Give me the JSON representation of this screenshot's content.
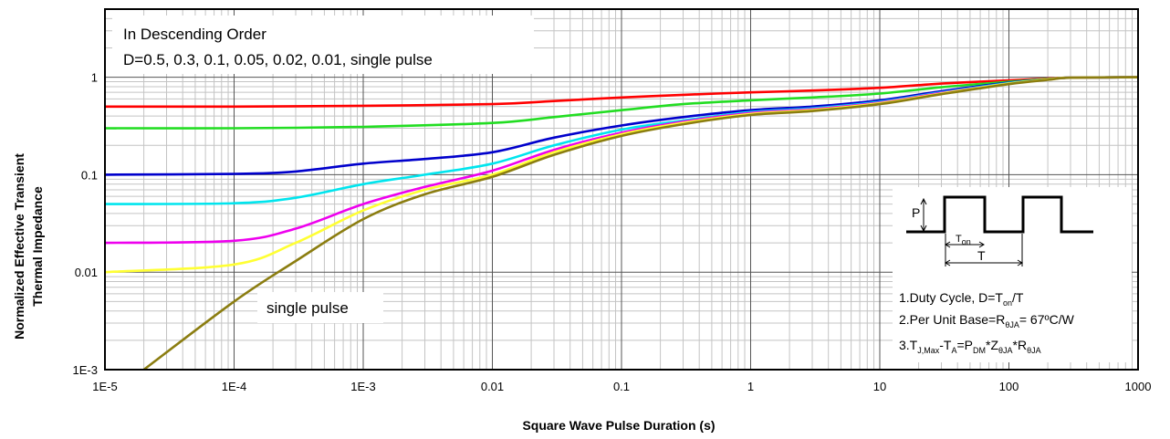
{
  "chart_data": {
    "type": "line",
    "title": "",
    "xlabel": "Square Wave Pulse Duration (s)",
    "ylabel_line1": "Normalized Effective Transient",
    "ylabel_line2": "Thermal Impedance",
    "xscale": "log",
    "yscale": "log",
    "xlim": [
      1e-05,
      1000
    ],
    "ylim": [
      0.001,
      5
    ],
    "grid": true,
    "x_tick_labels": [
      {
        "v": 1e-05,
        "label": "1E-5"
      },
      {
        "v": 0.0001,
        "label": "1E-4"
      },
      {
        "v": 0.001,
        "label": "1E-3"
      },
      {
        "v": 0.01,
        "label": "0.01"
      },
      {
        "v": 0.1,
        "label": "0.1"
      },
      {
        "v": 1,
        "label": "1"
      },
      {
        "v": 10,
        "label": "10"
      },
      {
        "v": 100,
        "label": "100"
      },
      {
        "v": 1000,
        "label": "1000"
      }
    ],
    "y_tick_labels": [
      {
        "v": 0.001,
        "label": "1E-3"
      },
      {
        "v": 0.01,
        "label": "0.01"
      },
      {
        "v": 0.1,
        "label": "0.1"
      },
      {
        "v": 1,
        "label": "1"
      }
    ],
    "annotations": {
      "order_line1": "In Descending Order",
      "order_line2": "D=0.5, 0.3, 0.1, 0.05, 0.02, 0.01, single pulse",
      "single_pulse_label": "single pulse"
    },
    "series": [
      {
        "color": "#ff0000",
        "points": [
          [
            1e-05,
            0.5
          ],
          [
            0.0001,
            0.5
          ],
          [
            0.001,
            0.51
          ],
          [
            0.01,
            0.53
          ],
          [
            0.03,
            0.57
          ],
          [
            0.1,
            0.62
          ],
          [
            0.3,
            0.66
          ],
          [
            1,
            0.7
          ],
          [
            3,
            0.73
          ],
          [
            10,
            0.78
          ],
          [
            30,
            0.86
          ],
          [
            100,
            0.93
          ],
          [
            200,
            0.97
          ],
          [
            300,
            0.99
          ],
          [
            1000,
            1.0
          ]
        ]
      },
      {
        "color": "#22dd22",
        "points": [
          [
            1e-05,
            0.3
          ],
          [
            0.0001,
            0.3
          ],
          [
            0.001,
            0.31
          ],
          [
            0.01,
            0.34
          ],
          [
            0.03,
            0.39
          ],
          [
            0.1,
            0.46
          ],
          [
            0.3,
            0.53
          ],
          [
            1,
            0.58
          ],
          [
            3,
            0.62
          ],
          [
            10,
            0.68
          ],
          [
            30,
            0.79
          ],
          [
            100,
            0.9
          ],
          [
            200,
            0.96
          ],
          [
            300,
            0.99
          ],
          [
            1000,
            1.0
          ]
        ]
      },
      {
        "color": "#0000cc",
        "points": [
          [
            1e-05,
            0.1
          ],
          [
            0.0001,
            0.102
          ],
          [
            0.0003,
            0.108
          ],
          [
            0.001,
            0.13
          ],
          [
            0.003,
            0.145
          ],
          [
            0.01,
            0.17
          ],
          [
            0.03,
            0.24
          ],
          [
            0.1,
            0.32
          ],
          [
            0.3,
            0.39
          ],
          [
            1,
            0.46
          ],
          [
            3,
            0.5
          ],
          [
            10,
            0.58
          ],
          [
            30,
            0.72
          ],
          [
            100,
            0.88
          ],
          [
            200,
            0.95
          ],
          [
            300,
            0.99
          ],
          [
            1000,
            1.0
          ]
        ]
      },
      {
        "color": "#00e5ee",
        "points": [
          [
            1e-05,
            0.05
          ],
          [
            0.0001,
            0.051
          ],
          [
            0.0003,
            0.058
          ],
          [
            0.001,
            0.08
          ],
          [
            0.003,
            0.1
          ],
          [
            0.01,
            0.13
          ],
          [
            0.03,
            0.2
          ],
          [
            0.1,
            0.29
          ],
          [
            0.3,
            0.36
          ],
          [
            1,
            0.44
          ],
          [
            3,
            0.48
          ],
          [
            10,
            0.56
          ],
          [
            30,
            0.7
          ],
          [
            100,
            0.87
          ],
          [
            200,
            0.95
          ],
          [
            300,
            0.99
          ],
          [
            1000,
            1.0
          ]
        ]
      },
      {
        "color": "#ee00ee",
        "points": [
          [
            1e-05,
            0.02
          ],
          [
            0.0001,
            0.021
          ],
          [
            0.0003,
            0.028
          ],
          [
            0.001,
            0.05
          ],
          [
            0.003,
            0.075
          ],
          [
            0.01,
            0.11
          ],
          [
            0.03,
            0.18
          ],
          [
            0.1,
            0.27
          ],
          [
            0.3,
            0.35
          ],
          [
            1,
            0.43
          ],
          [
            3,
            0.47
          ],
          [
            10,
            0.55
          ],
          [
            30,
            0.69
          ],
          [
            100,
            0.86
          ],
          [
            200,
            0.95
          ],
          [
            300,
            0.99
          ],
          [
            1000,
            1.0
          ]
        ]
      },
      {
        "color": "#ffff33",
        "points": [
          [
            1e-05,
            0.01
          ],
          [
            0.0001,
            0.012
          ],
          [
            0.0003,
            0.02
          ],
          [
            0.001,
            0.043
          ],
          [
            0.003,
            0.07
          ],
          [
            0.01,
            0.1
          ],
          [
            0.03,
            0.17
          ],
          [
            0.1,
            0.26
          ],
          [
            0.3,
            0.34
          ],
          [
            1,
            0.42
          ],
          [
            3,
            0.46
          ],
          [
            10,
            0.54
          ],
          [
            30,
            0.68
          ],
          [
            100,
            0.86
          ],
          [
            200,
            0.95
          ],
          [
            300,
            0.99
          ],
          [
            1000,
            1.0
          ]
        ]
      },
      {
        "color": "#8b7d10",
        "points": [
          [
            2e-05,
            0.001
          ],
          [
            0.0001,
            0.005
          ],
          [
            0.0003,
            0.013
          ],
          [
            0.001,
            0.035
          ],
          [
            0.003,
            0.063
          ],
          [
            0.01,
            0.095
          ],
          [
            0.03,
            0.16
          ],
          [
            0.1,
            0.25
          ],
          [
            0.3,
            0.33
          ],
          [
            1,
            0.41
          ],
          [
            3,
            0.45
          ],
          [
            10,
            0.53
          ],
          [
            30,
            0.67
          ],
          [
            100,
            0.85
          ],
          [
            200,
            0.94
          ],
          [
            300,
            0.99
          ],
          [
            1000,
            1.0
          ]
        ]
      }
    ]
  },
  "inset": {
    "p_label": "P",
    "ton_label": "T",
    "ton_sub": "on",
    "t_label": "T",
    "note1": "1.Duty Cycle, D=T",
    "note1_sub": "on",
    "note1_tail": "/T",
    "note2": "2.Per Unit Base=R",
    "note2_sub": "θJA",
    "note2_tail": "=  67ºC/W",
    "note3_a": "3.T",
    "note3_a_sub": "J,Max",
    "note3_b": "-T",
    "note3_b_sub": "A",
    "note3_c": "=P",
    "note3_c_sub": "DM",
    "note3_d": "*Z",
    "note3_d_sub": "θJA",
    "note3_e": "*R",
    "note3_e_sub": "θJA"
  }
}
